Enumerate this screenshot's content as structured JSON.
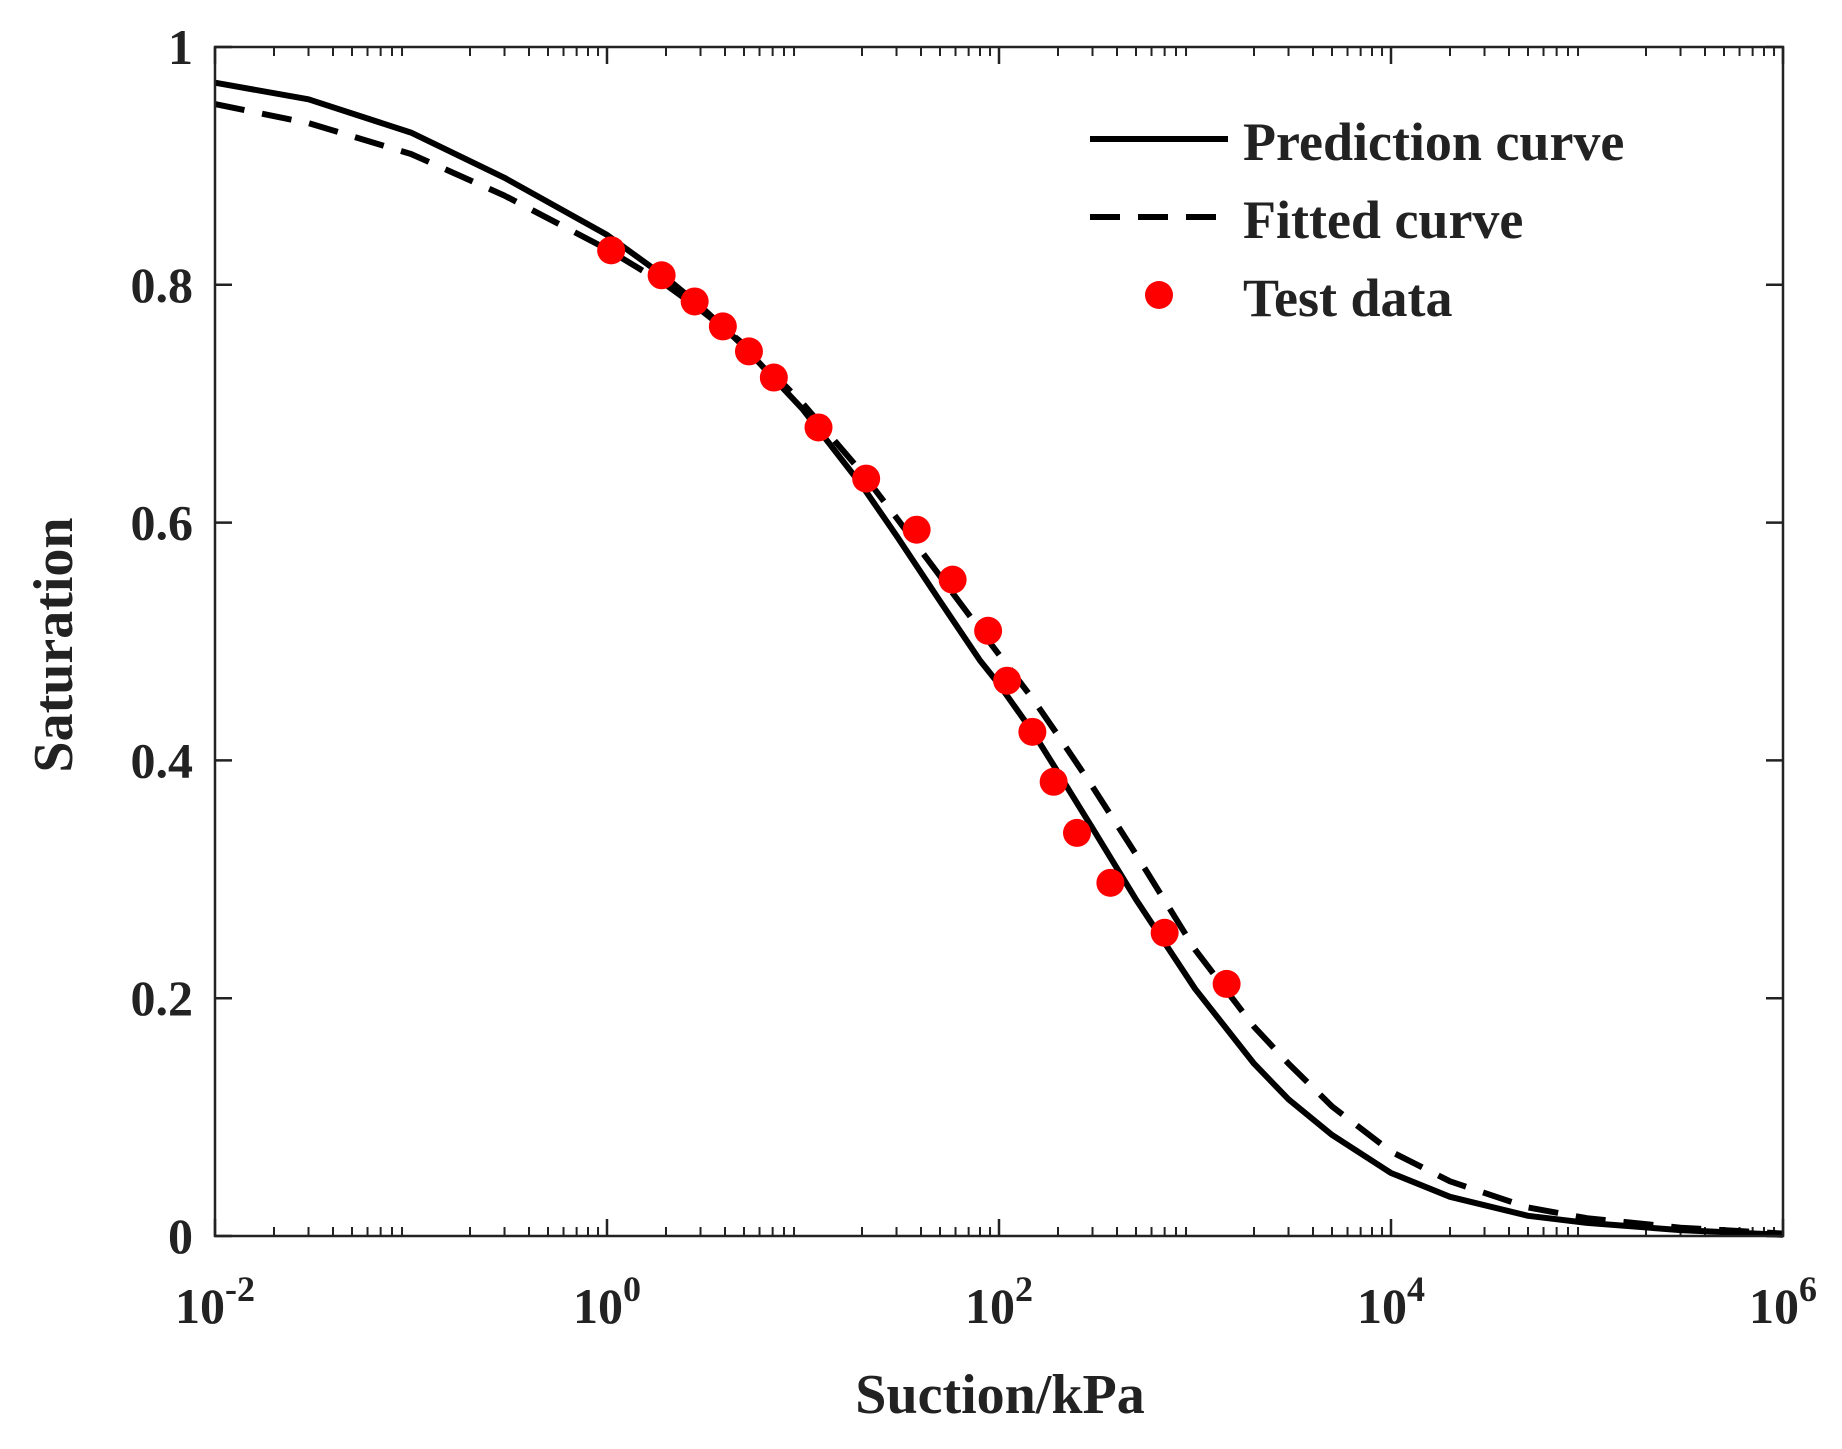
{
  "chart_data": {
    "type": "line",
    "title": "",
    "xlabel": "Suction/kPa",
    "ylabel": "Saturation",
    "xscale": "log",
    "xlim": [
      0.01,
      1000000
    ],
    "ylim": [
      0,
      1
    ],
    "x_ticks": [
      {
        "value": 0.01,
        "base": "10",
        "exp": "-2"
      },
      {
        "value": 1,
        "base": "10",
        "exp": "0"
      },
      {
        "value": 100,
        "base": "10",
        "exp": "2"
      },
      {
        "value": 10000,
        "base": "10",
        "exp": "4"
      },
      {
        "value": 1000000,
        "base": "10",
        "exp": "6"
      }
    ],
    "y_ticks": [
      {
        "value": 0,
        "label": "0"
      },
      {
        "value": 0.2,
        "label": "0.2"
      },
      {
        "value": 0.4,
        "label": "0.4"
      },
      {
        "value": 0.6,
        "label": "0.6"
      },
      {
        "value": 0.8,
        "label": "0.8"
      },
      {
        "value": 1,
        "label": "1"
      }
    ],
    "grid": false,
    "legend_position": "top-right",
    "series": [
      {
        "name": "Prediction curve",
        "style": "solid",
        "color": "#000000",
        "x": [
          0.01,
          0.03,
          0.1,
          0.3,
          1,
          2,
          3,
          5,
          10,
          20,
          30,
          50,
          80,
          100,
          150,
          200,
          300,
          500,
          1000,
          2000,
          3000,
          5000,
          10000,
          20000,
          50000,
          100000,
          300000,
          1000000
        ],
        "y": [
          0.97,
          0.956,
          0.928,
          0.89,
          0.842,
          0.806,
          0.782,
          0.748,
          0.695,
          0.631,
          0.589,
          0.534,
          0.484,
          0.464,
          0.423,
          0.39,
          0.343,
          0.283,
          0.208,
          0.145,
          0.115,
          0.085,
          0.053,
          0.033,
          0.017,
          0.011,
          0.005,
          0.001
        ]
      },
      {
        "name": "Fitted curve",
        "style": "dashed",
        "color": "#000000",
        "x": [
          0.01,
          0.03,
          0.1,
          0.3,
          1,
          2,
          3,
          5,
          10,
          20,
          30,
          50,
          80,
          100,
          150,
          200,
          300,
          500,
          1000,
          2000,
          3000,
          5000,
          10000,
          20000,
          50000,
          100000,
          300000,
          1000000
        ],
        "y": [
          0.952,
          0.936,
          0.91,
          0.875,
          0.83,
          0.8,
          0.779,
          0.75,
          0.7,
          0.642,
          0.604,
          0.555,
          0.51,
          0.489,
          0.451,
          0.421,
          0.378,
          0.321,
          0.241,
          0.176,
          0.145,
          0.109,
          0.071,
          0.046,
          0.024,
          0.015,
          0.007,
          0.002
        ]
      },
      {
        "name": "Test data",
        "style": "markers",
        "color": "#ff0000",
        "x": [
          1.05,
          1.9,
          2.8,
          3.9,
          5.3,
          7.1,
          12,
          21,
          38,
          58,
          88,
          110,
          148,
          190,
          250,
          370,
          700,
          1450
        ],
        "y": [
          0.829,
          0.808,
          0.786,
          0.765,
          0.744,
          0.722,
          0.68,
          0.637,
          0.594,
          0.552,
          0.509,
          0.467,
          0.424,
          0.382,
          0.339,
          0.297,
          0.255,
          0.212
        ]
      }
    ]
  }
}
